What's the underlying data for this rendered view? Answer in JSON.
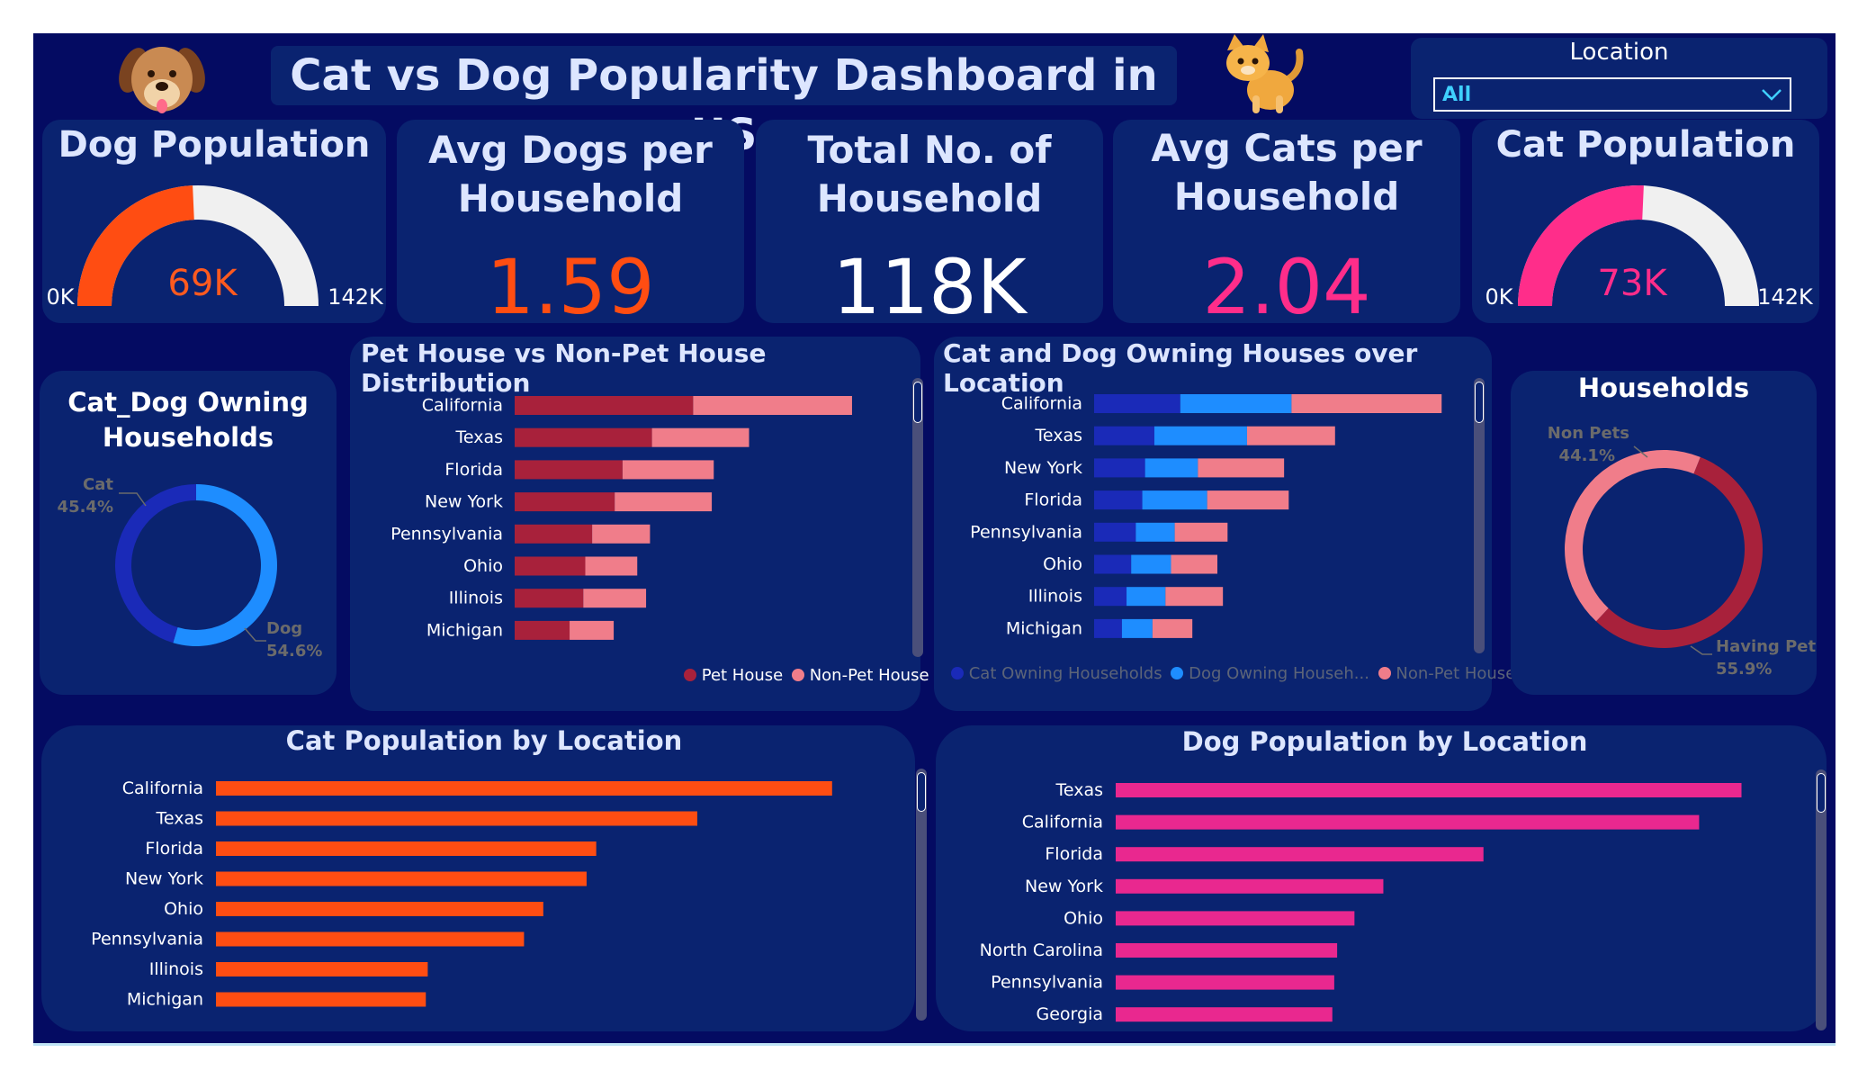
{
  "title": "Cat vs Dog Popularity Dashboard in US",
  "icons": {
    "left": "dog-face-icon",
    "right": "cat-icon"
  },
  "filter": {
    "label": "Location",
    "value": "All"
  },
  "kpis": {
    "dog_population": {
      "title": "Dog Population",
      "value": "69K",
      "min": "0K",
      "max": "142K",
      "fraction": 0.486,
      "color": "#ff4d12"
    },
    "avg_dogs": {
      "title_line1": "Avg Dogs per",
      "title_line2": "Household",
      "value": "1.59",
      "color": "#ff4d12"
    },
    "total_households": {
      "title_line1": "Total No. of",
      "title_line2": "Household",
      "value": "118K",
      "color": "#ffffff"
    },
    "avg_cats": {
      "title_line1": "Avg Cats per",
      "title_line2": "Household",
      "value": "2.04",
      "color": "#ff2d8a"
    },
    "cat_population": {
      "title": "Cat Population",
      "value": "73K",
      "min": "0K",
      "max": "142K",
      "fraction": 0.514,
      "color": "#ff2d8a"
    }
  },
  "chart_data": [
    {
      "id": "cat_dog_owning",
      "type": "pie",
      "title_line1": "Cat_Dog Owning",
      "title_line2": "Households",
      "slices": [
        {
          "name": "Cat",
          "value": 45.4,
          "label": "45.4%",
          "color": "#1a2ab8"
        },
        {
          "name": "Dog",
          "value": 54.6,
          "label": "54.6%",
          "color": "#1e8dff"
        }
      ]
    },
    {
      "id": "pet_vs_nonpet",
      "type": "bar",
      "title": "Pet House vs Non-Pet House Distribution",
      "categories": [
        "California",
        "Texas",
        "Florida",
        "New York",
        "Pennsylvania",
        "Ohio",
        "Illinois",
        "Michigan"
      ],
      "series": [
        {
          "name": "Pet House",
          "values": [
            18.2,
            14.0,
            11.0,
            10.2,
            7.9,
            7.2,
            7.0,
            5.6
          ],
          "color": "#a8213b"
        },
        {
          "name": "Non-Pet House",
          "values": [
            16.2,
            9.9,
            9.3,
            9.9,
            5.9,
            5.3,
            6.4,
            4.5
          ],
          "color": "#f07d8a"
        }
      ],
      "xlim": [
        0,
        40
      ]
    },
    {
      "id": "cat_dog_location",
      "type": "bar",
      "title": "Cat and Dog Owning Houses over Location",
      "categories": [
        "California",
        "Texas",
        "New York",
        "Florida",
        "Pennsylvania",
        "Ohio",
        "Illinois",
        "Michigan"
      ],
      "series": [
        {
          "name": "Cat Owning Households",
          "values": [
            9.3,
            6.5,
            5.5,
            5.2,
            4.5,
            4.0,
            3.5,
            3.0
          ],
          "color": "#1a2ab8"
        },
        {
          "name": "Dog Owning Househ...",
          "values": [
            12.0,
            10.0,
            5.7,
            7.0,
            4.2,
            4.3,
            4.2,
            3.3
          ],
          "color": "#1e8dff"
        },
        {
          "name": "Non-Pet House",
          "values": [
            16.2,
            9.5,
            9.3,
            8.8,
            5.7,
            5.0,
            6.2,
            4.3
          ],
          "color": "#f07d8a"
        }
      ],
      "xlim": [
        0,
        40
      ]
    },
    {
      "id": "households",
      "type": "pie",
      "title": "Households",
      "slices": [
        {
          "name": "Non Pets",
          "value": 44.1,
          "label": "44.1%",
          "color": "#f07d8a"
        },
        {
          "name": "Having Pets",
          "value": 55.9,
          "label": "55.9%",
          "color": "#a8213b"
        }
      ]
    },
    {
      "id": "cat_pop_location",
      "type": "bar",
      "title": "Cat Population by Location",
      "categories": [
        "California",
        "Texas",
        "Florida",
        "New York",
        "Ohio",
        "Pennsylvania",
        "Illinois",
        "Michigan"
      ],
      "values": [
        6.4,
        5.0,
        3.95,
        3.85,
        3.4,
        3.2,
        2.2,
        2.18
      ],
      "color": "#ff4d12",
      "xlim": [
        0,
        8
      ]
    },
    {
      "id": "dog_pop_location",
      "type": "bar",
      "title": "Dog Population by Location",
      "categories": [
        "Texas",
        "California",
        "Florida",
        "New York",
        "Ohio",
        "North Carolina",
        "Pennsylvania",
        "Georgia"
      ],
      "values": [
        6.5,
        6.06,
        3.82,
        2.78,
        2.48,
        2.3,
        2.27,
        2.25
      ],
      "color": "#e9288f",
      "xlim": [
        0,
        8
      ]
    }
  ]
}
